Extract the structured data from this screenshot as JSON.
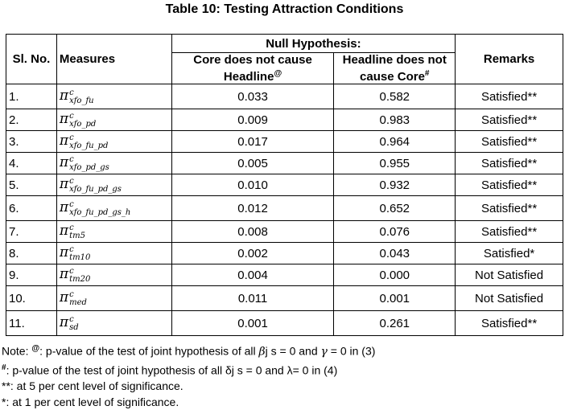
{
  "title": "Table 10: Testing Attraction Conditions",
  "headers": {
    "sl_no": "Sl. No.",
    "measures": "Measures",
    "null_hypothesis": "Null Hypothesis:",
    "col1": "Core does not cause Headline",
    "col1_mark": "@",
    "col2": "Headline does not cause Core",
    "col2_mark": "#",
    "remarks": "Remarks"
  },
  "pi_symbol": "π",
  "superscript": "c",
  "rows": [
    {
      "sl": "1.",
      "sub": "xfo_fu",
      "core": "0.033",
      "headline": "0.582",
      "remark": "Satisfied**"
    },
    {
      "sl": "2.",
      "sub": "xfo_pd",
      "core": "0.009",
      "headline": "0.983",
      "remark": "Satisfied**"
    },
    {
      "sl": "3.",
      "sub": "xfo_fu_pd",
      "core": "0.017",
      "headline": "0.964",
      "remark": "Satisfied**"
    },
    {
      "sl": "4.",
      "sub": "xfo_pd_gs",
      "core": "0.005",
      "headline": "0.955",
      "remark": "Satisfied**"
    },
    {
      "sl": "5.",
      "sub": "xfo_fu_pd_gs",
      "core": "0.010",
      "headline": "0.932",
      "remark": "Satisfied**"
    },
    {
      "sl": "6.",
      "sub": "xfo_fu_pd_gs_h",
      "core": "0.012",
      "headline": "0.652",
      "remark": "Satisfied**"
    },
    {
      "sl": "7.",
      "sub": "tm5",
      "core": "0.008",
      "headline": "0.076",
      "remark": "Satisfied**"
    },
    {
      "sl": "8.",
      "sub": "tm10",
      "core": "0.002",
      "headline": "0.043",
      "remark": "Satisfied*"
    },
    {
      "sl": "9.",
      "sub": "tm20",
      "core": "0.004",
      "headline": "0.000",
      "remark": "Not Satisfied"
    },
    {
      "sl": "10.",
      "sub": "med",
      "core": "0.011",
      "headline": "0.001",
      "remark": "Not Satisfied"
    },
    {
      "sl": "11.",
      "sub": "sd",
      "core": "0.001",
      "headline": "0.261",
      "remark": "Satisfied**"
    }
  ],
  "notes": {
    "line1_prefix": "Note: ",
    "line1_mark": "@",
    "line1_a": ": p-value of the test of joint hypothesis of all ",
    "line1_beta": "β",
    "line1_b": "j s = 0 and ",
    "line1_gamma": "γ",
    "line1_c": " = 0 in (3)",
    "line2_mark": "#",
    "line2_text": ": p-value of the test of joint hypothesis of all δj s = 0 and λ= 0 in (4)",
    "line3": "**: at 5 per cent level of significance.",
    "line4": "*: at 1 per cent level of significance."
  }
}
